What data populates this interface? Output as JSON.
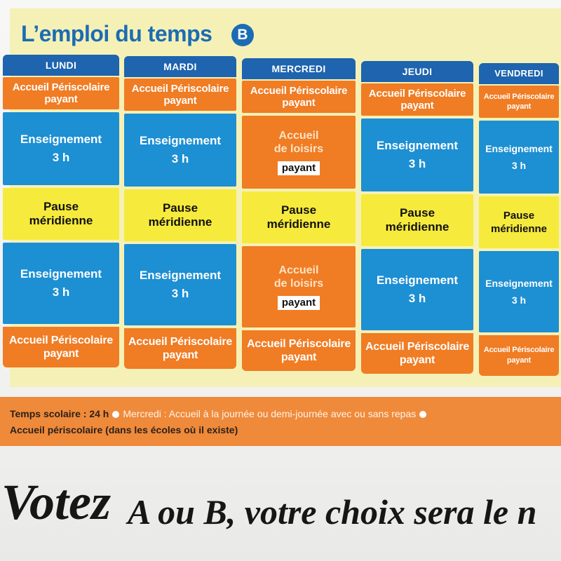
{
  "title": "L’emploi du temps",
  "title_badge": "B",
  "days": [
    {
      "header": "LUNDI",
      "s1": {
        "l1": "Accueil Périscolaire",
        "l2": "payant"
      },
      "s2": {
        "l1": "Enseignement",
        "l2": "3 h"
      },
      "s3": {
        "l1": "Pause",
        "l2": "méridienne"
      },
      "s4": {
        "l1": "Enseignement",
        "l2": "3 h"
      },
      "s5": {
        "l1": "Accueil Périscolaire",
        "l2": "payant"
      }
    },
    {
      "header": "MARDI",
      "s1": {
        "l1": "Accueil Périscolaire",
        "l2": "payant"
      },
      "s2": {
        "l1": "Enseignement",
        "l2": "3 h"
      },
      "s3": {
        "l1": "Pause",
        "l2": "méridienne"
      },
      "s4": {
        "l1": "Enseignement",
        "l2": "3 h"
      },
      "s5": {
        "l1": "Accueil Périscolaire",
        "l2": "payant"
      }
    },
    {
      "header": "MERCREDI",
      "s1": {
        "l1": "Accueil Périscolaire",
        "l2": "payant"
      },
      "s2": {
        "l1": "Accueil",
        "l2": "de loisirs",
        "tag": "payant"
      },
      "s3": {
        "l1": "Pause",
        "l2": "méridienne"
      },
      "s4": {
        "l1": "Accueil",
        "l2": "de loisirs",
        "tag": "payant"
      },
      "s5": {
        "l1": "Accueil Périscolaire",
        "l2": "payant"
      }
    },
    {
      "header": "JEUDI",
      "s1": {
        "l1": "Accueil Périscolaire",
        "l2": "payant"
      },
      "s2": {
        "l1": "Enseignement",
        "l2": "3 h"
      },
      "s3": {
        "l1": "Pause",
        "l2": "méridienne"
      },
      "s4": {
        "l1": "Enseignement",
        "l2": "3 h"
      },
      "s5": {
        "l1": "Accueil Périscolaire",
        "l2": "payant"
      }
    },
    {
      "header": "VENDREDI",
      "s1": {
        "l1": "Accueil Périscolaire",
        "l2": "payant"
      },
      "s2": {
        "l1": "Enseignement",
        "l2": "3 h"
      },
      "s3": {
        "l1": "Pause",
        "l2": "méridienne"
      },
      "s4": {
        "l1": "Enseignement",
        "l2": "3 h"
      },
      "s5": {
        "l1": "Accueil Périscolaire",
        "l2": "payant"
      }
    }
  ],
  "legend": {
    "school_time": "Temps scolaire : 24 h",
    "wednesday": "Mercredi : Accueil à la journée ou demi-journée avec ou sans repas",
    "periscolaire": "Accueil périscolaire (dans les écoles où il existe)"
  },
  "headline": {
    "lead": "Votez",
    "rest": "A ou B, votre choix sera le n"
  },
  "colors": {
    "panel": "#f5f1b6",
    "title_blue": "#1b6cb4",
    "header_blue": "#1e64ae",
    "teaching_blue": "#1d8fd3",
    "orange": "#f07c24",
    "yellow": "#f6ea3c",
    "strip": "#ef8a3b"
  }
}
